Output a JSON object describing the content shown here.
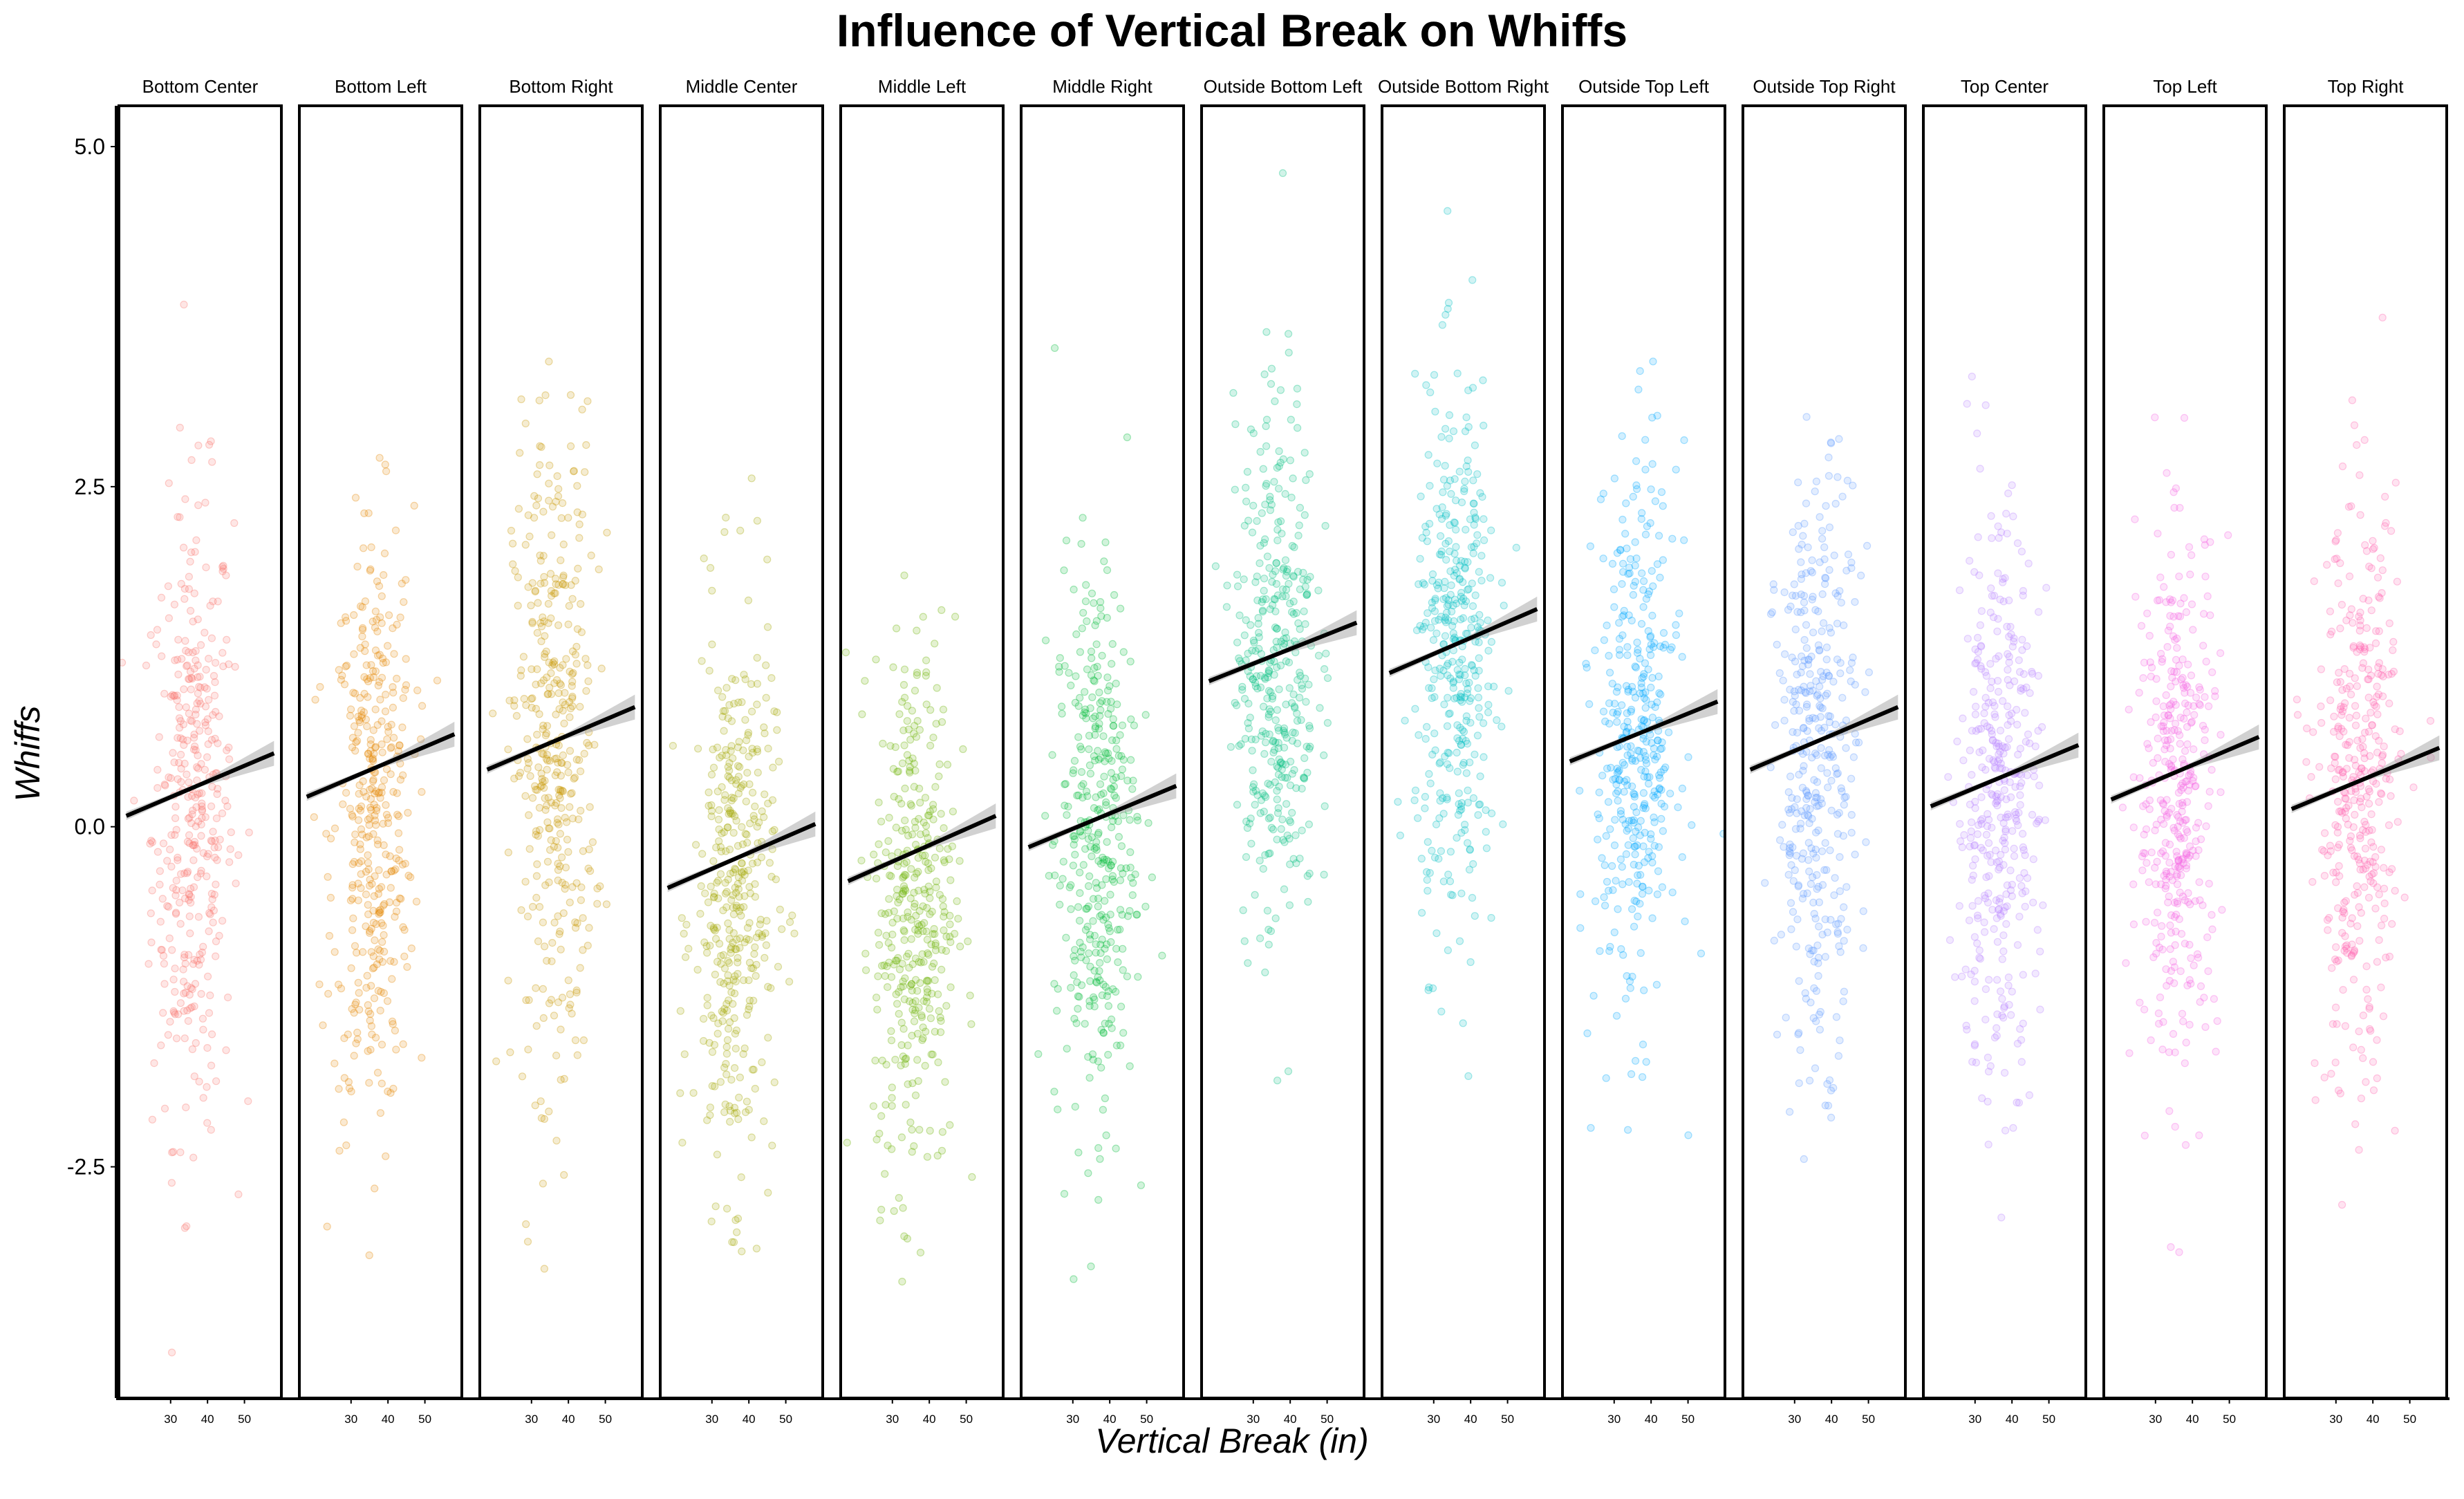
{
  "chart_data": {
    "type": "scatter",
    "title": "Influence of Vertical Break on Whiffs",
    "xlabel": "Vertical Break (in)",
    "ylabel": "Whiffs",
    "xlim": [
      16,
      60
    ],
    "ylim": [
      -4.2,
      5.3
    ],
    "x_ticks": [
      30,
      40,
      50
    ],
    "y_ticks": [
      -2.5,
      0.0,
      2.5,
      5.0
    ],
    "y_tick_labels": [
      "-2.5",
      "0.0",
      "2.5",
      "5.0"
    ],
    "grid": false,
    "legend": "none",
    "facets": [
      {
        "name": "Bottom Center",
        "color": "#F8766D",
        "fit": {
          "x0": 18,
          "y0": 0.08,
          "x1": 58,
          "y1": 0.54
        },
        "center": 0.1,
        "spread": 1.15
      },
      {
        "name": "Bottom Left",
        "color": "#E58700",
        "fit": {
          "x0": 18,
          "y0": 0.22,
          "x1": 58,
          "y1": 0.68
        },
        "center": 0.0,
        "spread": 1.1
      },
      {
        "name": "Bottom Right",
        "color": "#C99800",
        "fit": {
          "x0": 18,
          "y0": 0.42,
          "x1": 58,
          "y1": 0.88
        },
        "center": 0.55,
        "spread": 1.2
      },
      {
        "name": "Middle Center",
        "color": "#A3A500",
        "fit": {
          "x0": 18,
          "y0": -0.45,
          "x1": 58,
          "y1": 0.02
        },
        "center": -0.55,
        "spread": 1.05
      },
      {
        "name": "Middle Left",
        "color": "#6BB100",
        "fit": {
          "x0": 18,
          "y0": -0.4,
          "x1": 58,
          "y1": 0.08
        },
        "center": -0.6,
        "spread": 1.0
      },
      {
        "name": "Middle Right",
        "color": "#00BA38",
        "fit": {
          "x0": 18,
          "y0": -0.15,
          "x1": 58,
          "y1": 0.3
        },
        "center": -0.1,
        "spread": 1.05
      },
      {
        "name": "Outside Bottom Left",
        "color": "#00BF7D",
        "fit": {
          "x0": 18,
          "y0": 1.07,
          "x1": 58,
          "y1": 1.5
        },
        "center": 1.2,
        "spread": 1.0
      },
      {
        "name": "Outside Bottom Right",
        "color": "#00BFC4",
        "fit": {
          "x0": 18,
          "y0": 1.13,
          "x1": 58,
          "y1": 1.6
        },
        "center": 1.25,
        "spread": 1.0
      },
      {
        "name": "Outside Top Left",
        "color": "#00A9FF",
        "fit": {
          "x0": 18,
          "y0": 0.48,
          "x1": 58,
          "y1": 0.92
        },
        "center": 0.6,
        "spread": 1.0
      },
      {
        "name": "Outside Top Right",
        "color": "#619CFF",
        "fit": {
          "x0": 18,
          "y0": 0.42,
          "x1": 58,
          "y1": 0.88
        },
        "center": 0.45,
        "spread": 1.05
      },
      {
        "name": "Top Center",
        "color": "#B983FF",
        "fit": {
          "x0": 18,
          "y0": 0.15,
          "x1": 58,
          "y1": 0.6
        },
        "center": 0.2,
        "spread": 1.05
      },
      {
        "name": "Top Left",
        "color": "#F564E3",
        "fit": {
          "x0": 18,
          "y0": 0.2,
          "x1": 58,
          "y1": 0.66
        },
        "center": 0.25,
        "spread": 1.0
      },
      {
        "name": "Top Right",
        "color": "#FF64B0",
        "fit": {
          "x0": 18,
          "y0": 0.13,
          "x1": 58,
          "y1": 0.58
        },
        "center": 0.2,
        "spread": 1.05
      }
    ]
  }
}
